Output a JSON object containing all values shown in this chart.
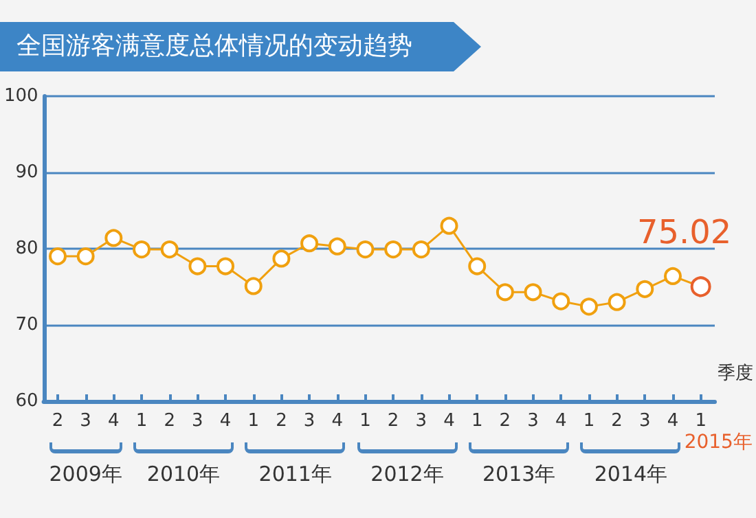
{
  "chart_data": {
    "type": "line",
    "title": "全国游客满意度总体情况的变动趋势",
    "xlabel": "季度",
    "categories": [
      "2",
      "3",
      "4",
      "1",
      "2",
      "3",
      "4",
      "1",
      "2",
      "3",
      "4",
      "1",
      "2",
      "3",
      "4",
      "1",
      "2",
      "3",
      "4",
      "1",
      "2",
      "3",
      "4",
      "1"
    ],
    "values": [
      79.0,
      79.0,
      81.4,
      79.9,
      79.9,
      77.7,
      77.7,
      75.1,
      78.7,
      80.7,
      80.3,
      79.9,
      79.9,
      79.9,
      83.0,
      77.7,
      74.3,
      74.3,
      73.1,
      72.4,
      73.0,
      74.7,
      76.4,
      75.02
    ],
    "colors": [
      "#f0a00f",
      "#f0a00f",
      "#f0a00f",
      "#f0a00f",
      "#f0a00f",
      "#f0a00f",
      "#f0a00f",
      "#f0a00f",
      "#f0a00f",
      "#f0a00f",
      "#f0a00f",
      "#f0a00f",
      "#f0a00f",
      "#f0a00f",
      "#f0a00f",
      "#f0a00f",
      "#f0a00f",
      "#f0a00f",
      "#f0a00f",
      "#f0a00f",
      "#f0a00f",
      "#f0a00f",
      "#f0a00f",
      "#e8602c"
    ],
    "value_labels": [
      null,
      null,
      null,
      null,
      null,
      null,
      null,
      null,
      null,
      null,
      null,
      null,
      null,
      null,
      null,
      null,
      null,
      null,
      null,
      null,
      null,
      null,
      null,
      "75.02"
    ],
    "color": "#f0a00f",
    "annotations": [
      "2009年",
      "2010年",
      "2011年",
      "2012年",
      "2013年",
      "2014年",
      "2015年"
    ],
    "ylim": [
      60,
      100
    ],
    "yticks": [
      60,
      70,
      80,
      90,
      100
    ],
    "grid": "y",
    "marker": "circle",
    "line_style": "solid"
  }
}
